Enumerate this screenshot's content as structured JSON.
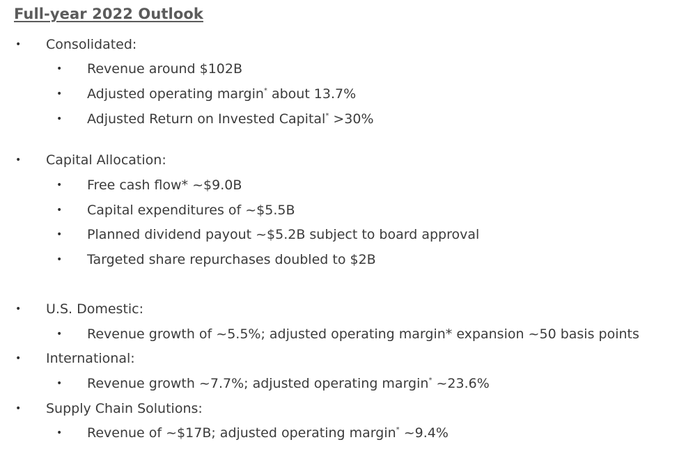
{
  "title": "Full-year 2022 Outlook",
  "bullet": "•",
  "sections": [
    {
      "label": "Consolidated:",
      "items": [
        {
          "pre": "Revenue around $102B",
          "sup": "",
          "post": ""
        },
        {
          "pre": "Adjusted operating margin",
          "sup": "*",
          "post": " about 13.7%"
        },
        {
          "pre": "Adjusted Return on Invested Capital",
          "sup": "*",
          "post": " >30%"
        }
      ]
    },
    {
      "label": "Capital Allocation:",
      "items": [
        {
          "pre": "Free cash flow* ~$9.0B",
          "sup": "",
          "post": ""
        },
        {
          "pre": "Capital expenditures of ~$5.5B",
          "sup": "",
          "post": ""
        },
        {
          "pre": "Planned dividend payout ~$5.2B subject to board approval",
          "sup": "",
          "post": ""
        },
        {
          "pre": "Targeted share repurchases doubled to $2B",
          "sup": "",
          "post": ""
        }
      ]
    },
    {
      "label": "U.S. Domestic:",
      "items": [
        {
          "pre": "Revenue growth of ~5.5%; adjusted operating margin* expansion ~50 basis points",
          "sup": "",
          "post": ""
        }
      ]
    },
    {
      "label": "International:",
      "items": [
        {
          "pre": "Revenue growth ~7.7%; adjusted operating margin",
          "sup": "*",
          "post": " ~23.6%"
        }
      ]
    },
    {
      "label": "Supply Chain Solutions:",
      "items": [
        {
          "pre": "Revenue of ~$17B; adjusted operating margin",
          "sup": "*",
          "post": " ~9.4%"
        }
      ]
    }
  ]
}
